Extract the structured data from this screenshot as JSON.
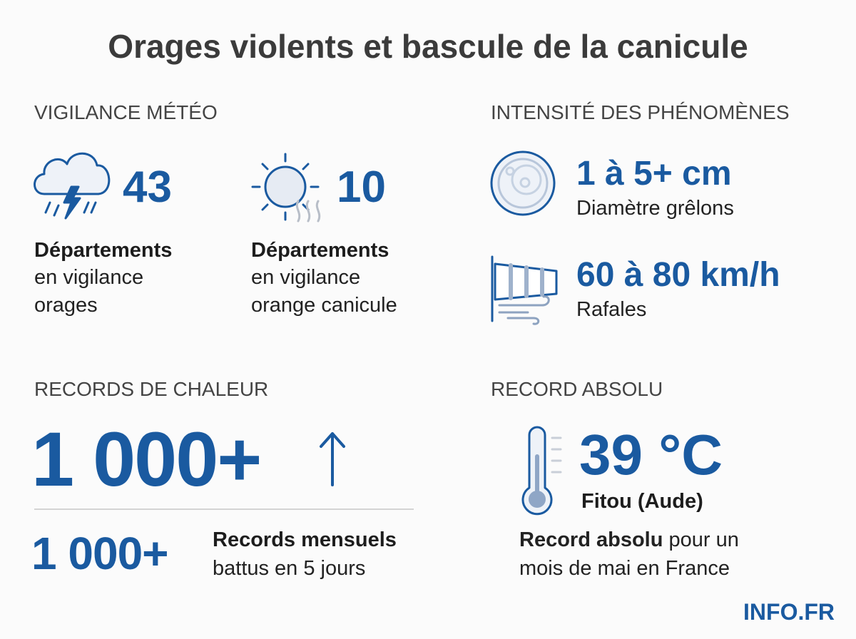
{
  "title": "Orages violents et bascule de la canicule",
  "vigilance": {
    "heading": "VIGILANCE MÉTÉO",
    "items": [
      {
        "value": "43",
        "label_bold": "Départements",
        "lines": [
          "en vigilance",
          "orages"
        ]
      },
      {
        "value": "10",
        "label_bold": "Départements",
        "lines": [
          "en vigilance",
          "orange canicule"
        ]
      }
    ]
  },
  "intensity": {
    "heading": "INTENSITÉ DES PHÉNOMÈNES",
    "items": [
      {
        "value": "1 à 5+ cm",
        "label": "Diamètre grêlons"
      },
      {
        "value": "60 à 80 km/h",
        "label": "Rafales"
      }
    ]
  },
  "records": {
    "heading": "RECORDS DE CHALEUR",
    "big_value": "1 000+",
    "small_value": "1 000+",
    "label_bold": "Records mensuels",
    "label": "battus en 5 jours"
  },
  "absolute": {
    "heading": "RECORD ABSOLU",
    "value": "39 °C",
    "place": "Fitou (Aude)",
    "line1_bold": "Record absolu",
    "line1_rest": "pour un",
    "line2": "mois de mai en France"
  },
  "brand": "INFO.FR"
}
